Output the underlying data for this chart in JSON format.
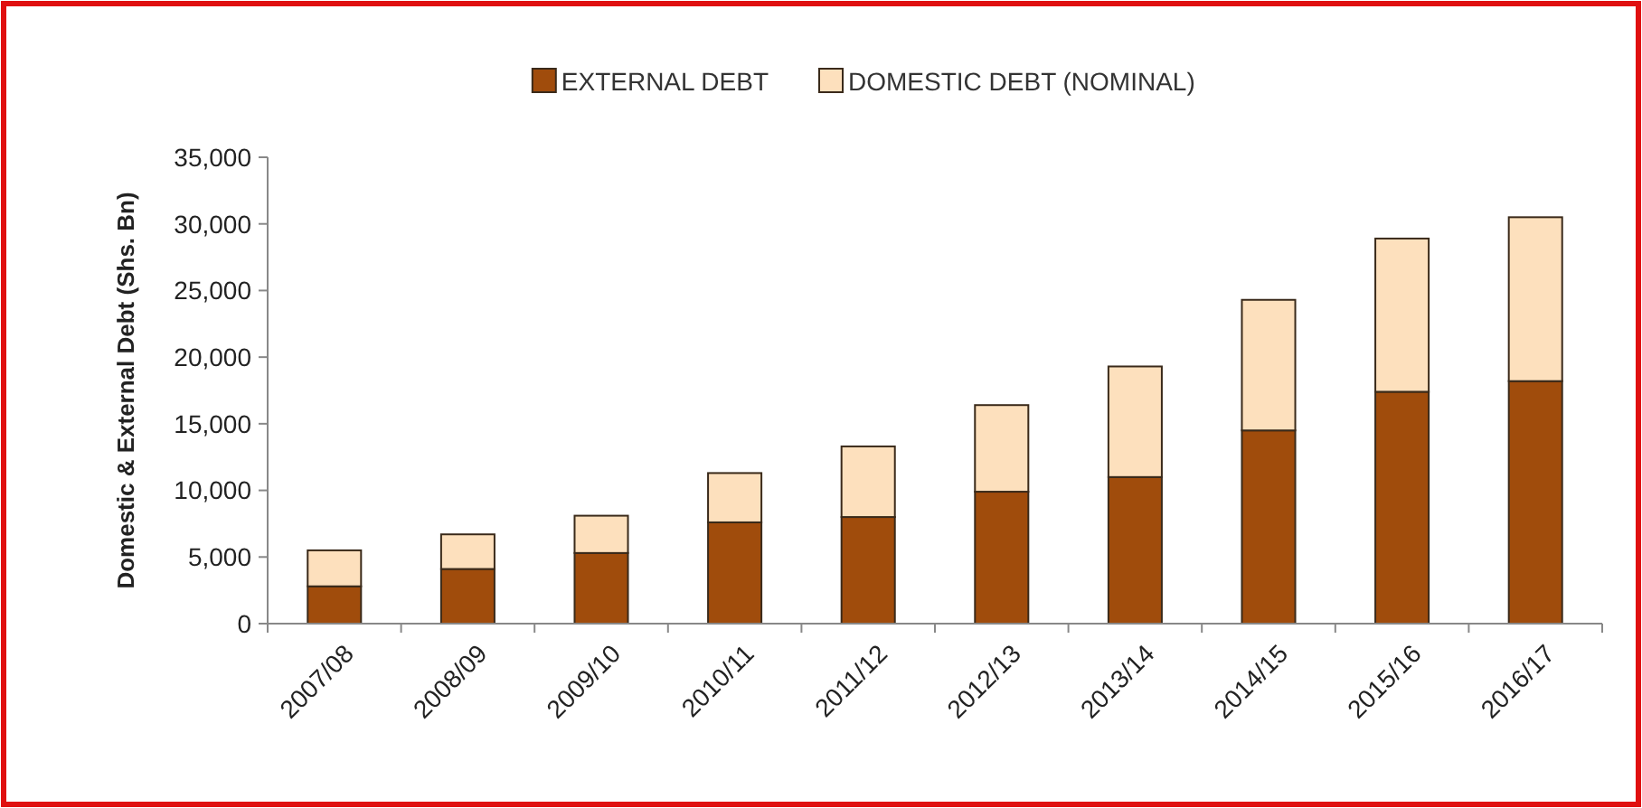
{
  "chart_data": {
    "type": "bar",
    "stacked": true,
    "ylabel": "Domestic & External Debt (Shs. Bn)",
    "categories": [
      "2007/08",
      "2008/09",
      "2009/10",
      "2010/11",
      "2011/12",
      "2012/13",
      "2013/14",
      "2014/15",
      "2015/16",
      "2016/17"
    ],
    "series": [
      {
        "name": "EXTERNAL DEBT",
        "color": "#a04c0c",
        "values": [
          2800,
          4100,
          5300,
          7600,
          8000,
          9900,
          11000,
          14500,
          17400,
          18200
        ]
      },
      {
        "name": "DOMESTIC DEBT (NOMINAL)",
        "color": "#fde0bd",
        "values": [
          2700,
          2600,
          2800,
          3700,
          5300,
          6500,
          8300,
          9800,
          11500,
          12300
        ]
      }
    ],
    "ylim": [
      0,
      35000
    ],
    "yticks": [
      {
        "value": 0,
        "label": "0"
      },
      {
        "value": 5000,
        "label": "5,000"
      },
      {
        "value": 10000,
        "label": "10,000"
      },
      {
        "value": 15000,
        "label": "15,000"
      },
      {
        "value": 20000,
        "label": "20,000"
      },
      {
        "value": 25000,
        "label": "25,000"
      },
      {
        "value": 30000,
        "label": "30,000"
      },
      {
        "value": 35000,
        "label": "35,000"
      }
    ],
    "legend": "top",
    "grid": false
  }
}
